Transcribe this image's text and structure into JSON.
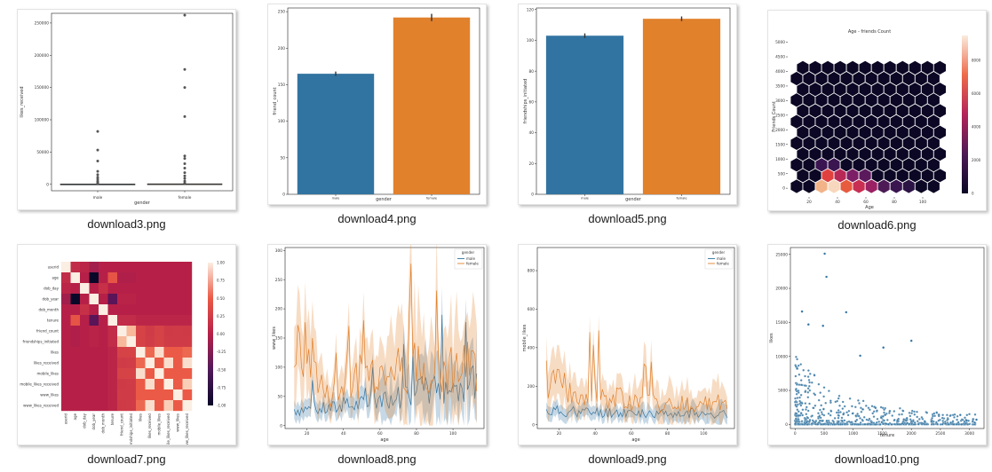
{
  "files": [
    {
      "name": "download3.png"
    },
    {
      "name": "download4.png"
    },
    {
      "name": "download5.png"
    },
    {
      "name": "download6.png"
    },
    {
      "name": "download7.png"
    },
    {
      "name": "download8.png"
    },
    {
      "name": "download9.png"
    },
    {
      "name": "download10.png"
    }
  ],
  "colors": {
    "blue": "#3274a1",
    "orange": "#e1812c",
    "hex_dark": "#0b0724"
  },
  "chart_data": [
    {
      "type": "box",
      "xlabel": "gender",
      "ylabel": "likes_received",
      "categories": [
        "male",
        "female"
      ],
      "ylim": [
        -10000,
        265000
      ],
      "yticks": [
        0,
        50000,
        100000,
        150000,
        200000,
        250000
      ],
      "series": [
        {
          "name": "male",
          "box": [
            0,
            0,
            500
          ],
          "outliers": [
            1500,
            3000,
            5000,
            8000,
            11000,
            15000,
            20000,
            36000,
            53000,
            82000
          ]
        },
        {
          "name": "female",
          "box": [
            0,
            0,
            800
          ],
          "outliers": [
            2000,
            5000,
            9000,
            13000,
            18000,
            25000,
            32000,
            40000,
            44000,
            105000,
            150000,
            178000,
            262000
          ]
        }
      ]
    },
    {
      "type": "bar",
      "xlabel": "gender",
      "ylabel": "friend_count",
      "categories": [
        "male",
        "female"
      ],
      "values": [
        165,
        242
      ],
      "errors": [
        3,
        5
      ],
      "ylim": [
        0,
        255
      ],
      "yticks": [
        0,
        50,
        100,
        150,
        200,
        250
      ]
    },
    {
      "type": "bar",
      "xlabel": "gender",
      "ylabel": "friendships_initiated",
      "categories": [
        "male",
        "female"
      ],
      "values": [
        103,
        114
      ],
      "errors": [
        1.5,
        1.5
      ],
      "ylim": [
        0,
        121
      ],
      "yticks": [
        0,
        20,
        40,
        60,
        80,
        100,
        120
      ]
    },
    {
      "type": "heatmap",
      "title": "Age - friends Count",
      "xlabel": "Age",
      "ylabel": "Friends Count",
      "xlim": [
        5,
        120
      ],
      "ylim": [
        -300,
        5200
      ],
      "xticks": [
        20,
        40,
        60,
        80,
        100
      ],
      "yticks": [
        0,
        500,
        1000,
        1500,
        2000,
        2500,
        3000,
        3500,
        4000,
        4500,
        5000
      ],
      "colorbar_ticks": [
        0,
        2000,
        4000,
        6000,
        8000
      ]
    },
    {
      "type": "heatmap",
      "labels": [
        "userid",
        "age",
        "dob_day",
        "dob_year",
        "dob_month",
        "tenure",
        "friend_count",
        "friendships_initiated",
        "likes",
        "likes_received",
        "mobile_likes",
        "mobile_likes_received",
        "www_likes",
        "www_likes_received"
      ],
      "colorbar_ticks": [
        1.0,
        0.75,
        0.5,
        0.25,
        0.0,
        -0.25,
        -0.5,
        -0.75,
        -1.0
      ]
    },
    {
      "type": "line",
      "xlabel": "age",
      "ylabel": "www_likes",
      "ylim": [
        -5,
        305
      ],
      "xlim": [
        8,
        117
      ],
      "yticks": [
        0,
        50,
        100,
        150,
        200,
        250,
        300
      ],
      "xticks": [
        20,
        40,
        60,
        80,
        100
      ],
      "legend_title": "gender",
      "series": [
        {
          "name": "male"
        },
        {
          "name": "female"
        }
      ]
    },
    {
      "type": "line",
      "xlabel": "age",
      "ylabel": "mobile_likes",
      "ylim": [
        -20,
        920
      ],
      "xlim": [
        8,
        117
      ],
      "yticks": [
        0,
        200,
        400,
        600,
        800
      ],
      "xticks": [
        20,
        40,
        60,
        80,
        100
      ],
      "legend_title": "gender",
      "series": [
        {
          "name": "male"
        },
        {
          "name": "female"
        }
      ]
    },
    {
      "type": "scatter",
      "xlabel": "tenure",
      "ylabel": "likes",
      "xlim": [
        -80,
        3250
      ],
      "ylim": [
        -600,
        26000
      ],
      "xticks": [
        0,
        500,
        1000,
        1500,
        2000,
        2500,
        3000
      ],
      "yticks": [
        0,
        5000,
        10000,
        15000,
        20000,
        25000
      ],
      "highlights": [
        [
          510,
          25100
        ],
        [
          540,
          21700
        ],
        [
          480,
          14500
        ],
        [
          880,
          16500
        ],
        [
          1520,
          11300
        ],
        [
          2000,
          12300
        ],
        [
          120,
          16600
        ],
        [
          230,
          14700
        ],
        [
          1120,
          10100
        ],
        [
          2950,
          600
        ],
        [
          3120,
          700
        ]
      ]
    }
  ]
}
